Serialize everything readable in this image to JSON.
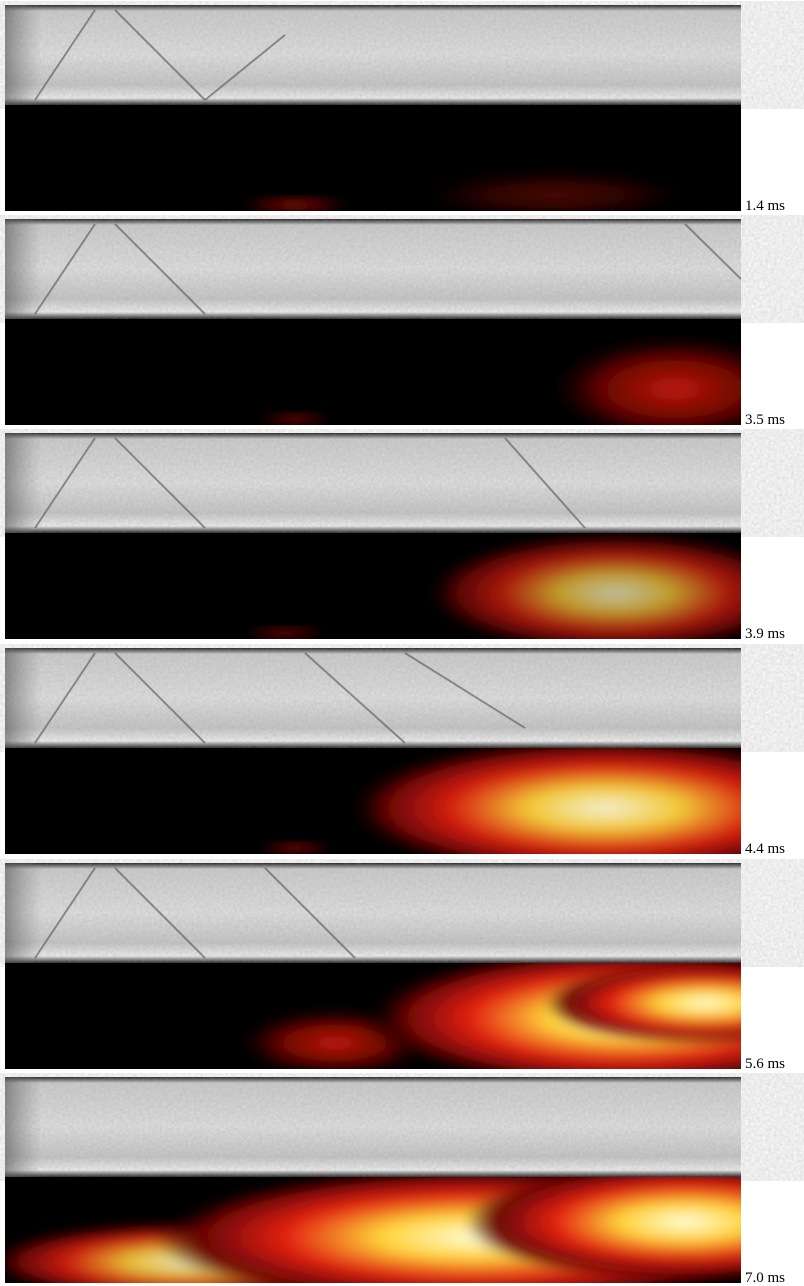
{
  "panels": [
    {
      "label": "1.4 ms"
    },
    {
      "label": "3.5 ms"
    },
    {
      "label": "3.9 ms"
    },
    {
      "label": "4.4 ms"
    },
    {
      "label": "5.6 ms"
    },
    {
      "label": "7.0 ms"
    }
  ]
}
